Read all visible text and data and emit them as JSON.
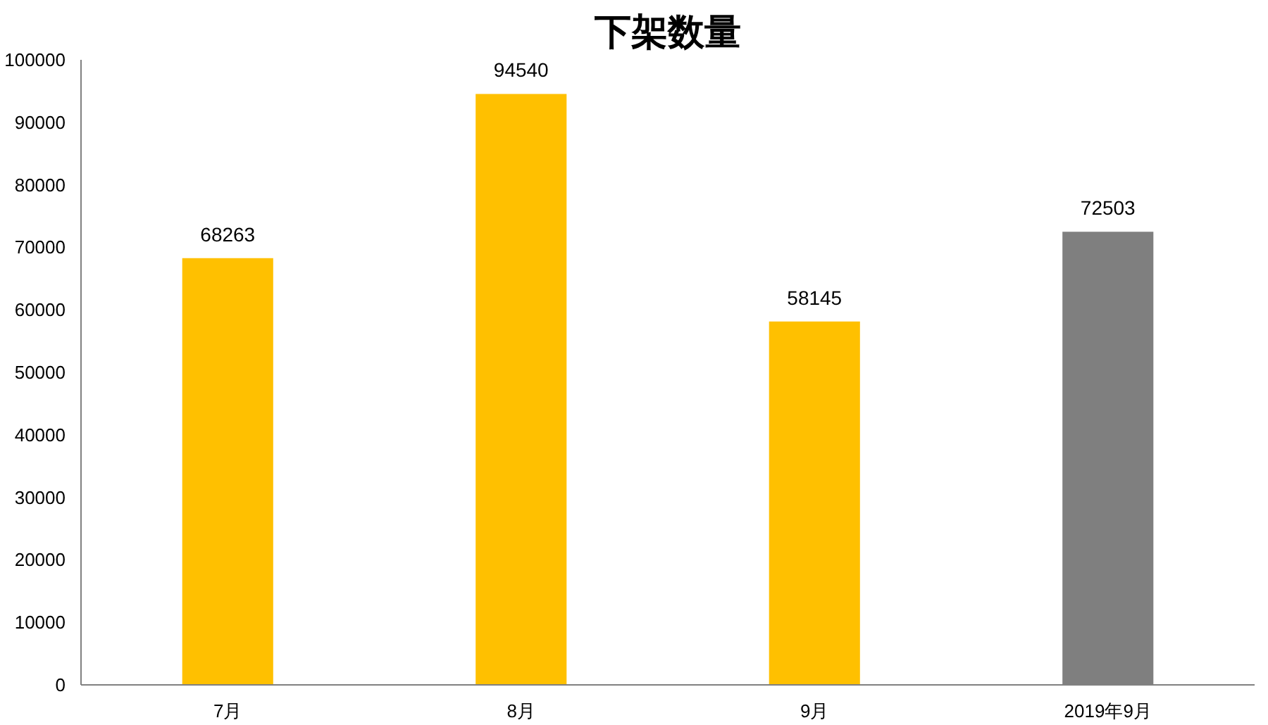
{
  "chart_data": {
    "type": "bar",
    "title": "下架数量",
    "categories": [
      "7月",
      "8月",
      "9月",
      "2019年9月"
    ],
    "values": [
      68263,
      94540,
      58145,
      72503
    ],
    "colors": [
      "#ffc000",
      "#ffc000",
      "#ffc000",
      "#7f7f7f"
    ],
    "ylim": [
      0,
      100000
    ],
    "yticks": [
      0,
      10000,
      20000,
      30000,
      40000,
      50000,
      60000,
      70000,
      80000,
      90000,
      100000
    ],
    "data_labels": true,
    "grid": false
  }
}
